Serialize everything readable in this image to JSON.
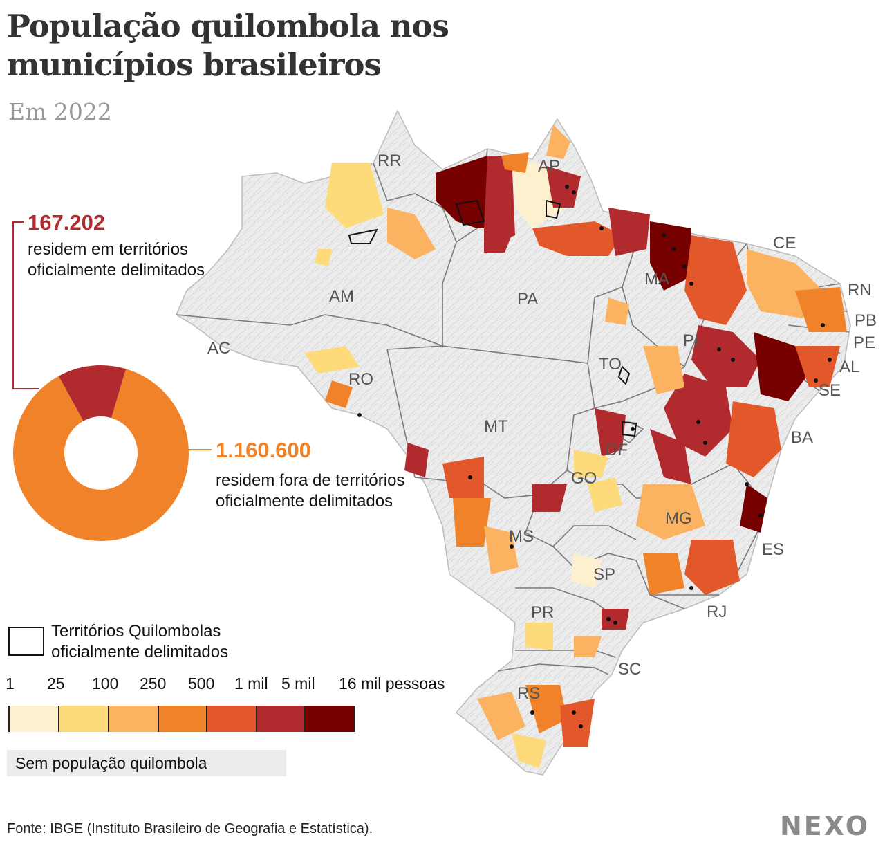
{
  "header": {
    "title": "População quilombola nos municípios brasileiros",
    "subtitle": "Em 2022"
  },
  "donut": {
    "inside": {
      "value": "167.202",
      "label": "residem em territórios oficialmente delimitados",
      "amount": 167202,
      "color": "#b12a2d"
    },
    "outside": {
      "value": "1.160.600",
      "label": "residem fora de territórios oficialmente delimitados",
      "amount": 1160600,
      "color": "#f0832a"
    }
  },
  "legend": {
    "territories_label": "Territórios Quilombolas oficialmente delimitados",
    "scale_labels": [
      "1",
      "25",
      "100",
      "250",
      "500",
      "1 mil",
      "5 mil",
      "16 mil pessoas"
    ],
    "scale_colors": [
      "#fdf0cf",
      "#fddb7b",
      "#fbb362",
      "#f0832a",
      "#e2582a",
      "#b12a2d",
      "#760000"
    ],
    "no_population_label": "Sem população quilombola",
    "no_population_color": "#ececec"
  },
  "map": {
    "states": [
      "RR",
      "AP",
      "AM",
      "PA",
      "MA",
      "CE",
      "RN",
      "PB",
      "PE",
      "AL",
      "SE",
      "PI",
      "AC",
      "RO",
      "TO",
      "BA",
      "MT",
      "DF",
      "GO",
      "MG",
      "ES",
      "MS",
      "SP",
      "RJ",
      "PR",
      "SC",
      "RS"
    ]
  },
  "footer": {
    "source": "Fonte: IBGE (Instituto Brasileiro de Geografia e Estatística).",
    "logo": "NEXO"
  }
}
